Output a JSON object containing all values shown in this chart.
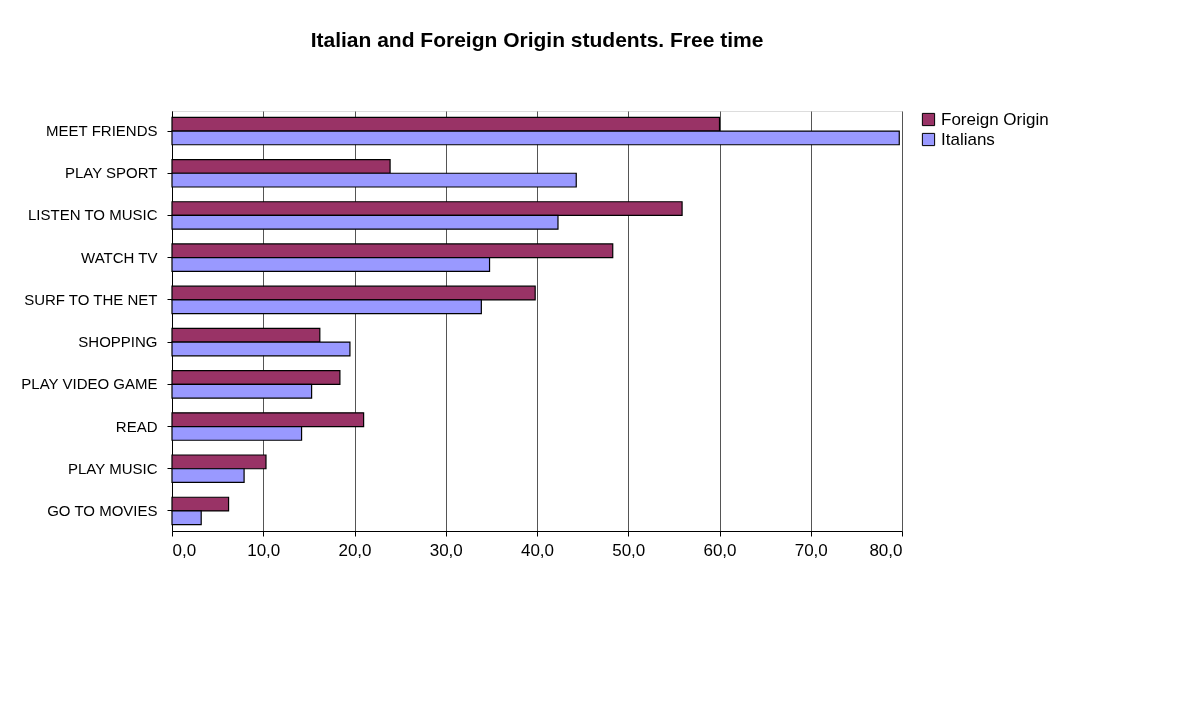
{
  "chart_data": {
    "type": "bar",
    "orientation": "horizontal",
    "title": "Italian and Foreign Origin students. Free time",
    "categories": [
      "MEET FRIENDS",
      "PLAY SPORT",
      "LISTEN TO MUSIC",
      "WATCH TV",
      "SURF TO THE NET",
      "SHOPPING",
      "PLAY VIDEO GAME",
      "READ",
      "PLAY MUSIC",
      "GO TO MOVIES"
    ],
    "series": [
      {
        "name": "Foreign Origin",
        "color": "#993366",
        "values": [
          60.0,
          23.9,
          55.9,
          48.3,
          39.8,
          16.2,
          18.4,
          21.0,
          10.3,
          6.2
        ]
      },
      {
        "name": "Italians",
        "color": "#9999ff",
        "values": [
          79.7,
          44.3,
          42.3,
          34.8,
          33.9,
          19.5,
          15.3,
          14.2,
          7.9,
          3.2
        ]
      }
    ],
    "xlim": [
      0,
      80
    ],
    "xticks": [
      {
        "value": 0,
        "label": "0,0"
      },
      {
        "value": 10,
        "label": "10,0"
      },
      {
        "value": 20,
        "label": "20,0"
      },
      {
        "value": 30,
        "label": "30,0"
      },
      {
        "value": 40,
        "label": "40,0"
      },
      {
        "value": 50,
        "label": "50,0"
      },
      {
        "value": 60,
        "label": "60,0"
      },
      {
        "value": 70,
        "label": "70,0"
      },
      {
        "value": 80,
        "label": "80,0"
      }
    ],
    "grid": "x",
    "legend": "right"
  }
}
